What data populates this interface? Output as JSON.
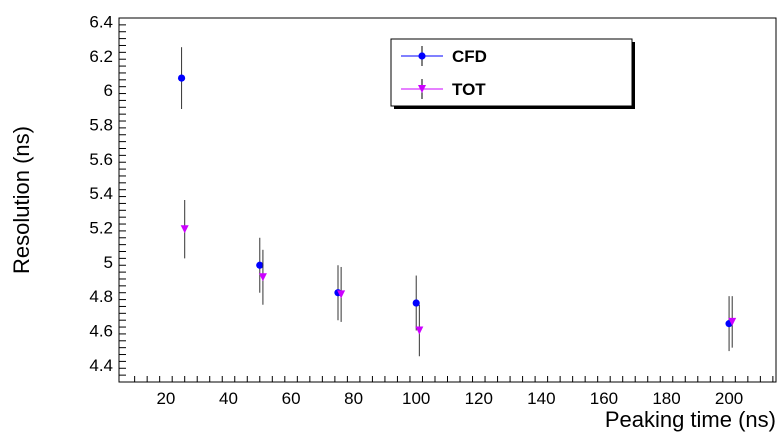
{
  "chart_data": {
    "type": "scatter",
    "xlabel": "Peaking time (ns)",
    "ylabel": "Resolution (ns)",
    "xlim": [
      5,
      215
    ],
    "ylim": [
      4.3,
      6.42
    ],
    "x_ticks": [
      20,
      40,
      60,
      80,
      100,
      120,
      140,
      160,
      180,
      200
    ],
    "x_tick_labels": [
      "20",
      "40",
      "60",
      "80",
      "100",
      "120",
      "140",
      "160",
      "180",
      "200"
    ],
    "y_ticks": [
      4.4,
      4.6,
      4.8,
      5.0,
      5.2,
      5.4,
      5.6,
      5.8,
      6.0,
      6.2,
      6.4
    ],
    "y_tick_labels": [
      "4.4",
      "4.6",
      "4.8",
      "5",
      "5.2",
      "5.4",
      "5.6",
      "5.8",
      "6",
      "6.2",
      "6.4"
    ],
    "grid": false,
    "legend_position": "top-right",
    "series": [
      {
        "name": "CFD",
        "marker": "circle",
        "color": "#0000ff",
        "points": [
          {
            "x": 25,
            "y": 6.07,
            "err": 0.18
          },
          {
            "x": 50,
            "y": 4.98,
            "err": 0.16
          },
          {
            "x": 75,
            "y": 4.82,
            "err": 0.16
          },
          {
            "x": 100,
            "y": 4.76,
            "err": 0.16
          },
          {
            "x": 200,
            "y": 4.64,
            "err": 0.16
          }
        ]
      },
      {
        "name": "TOT",
        "marker": "triangle-down",
        "color": "#cc00ff",
        "points": [
          {
            "x": 26,
            "y": 5.19,
            "err": 0.17
          },
          {
            "x": 51,
            "y": 4.91,
            "err": 0.16
          },
          {
            "x": 76,
            "y": 4.81,
            "err": 0.16
          },
          {
            "x": 101,
            "y": 4.6,
            "err": 0.15
          },
          {
            "x": 201,
            "y": 4.65,
            "err": 0.15
          }
        ]
      }
    ]
  }
}
